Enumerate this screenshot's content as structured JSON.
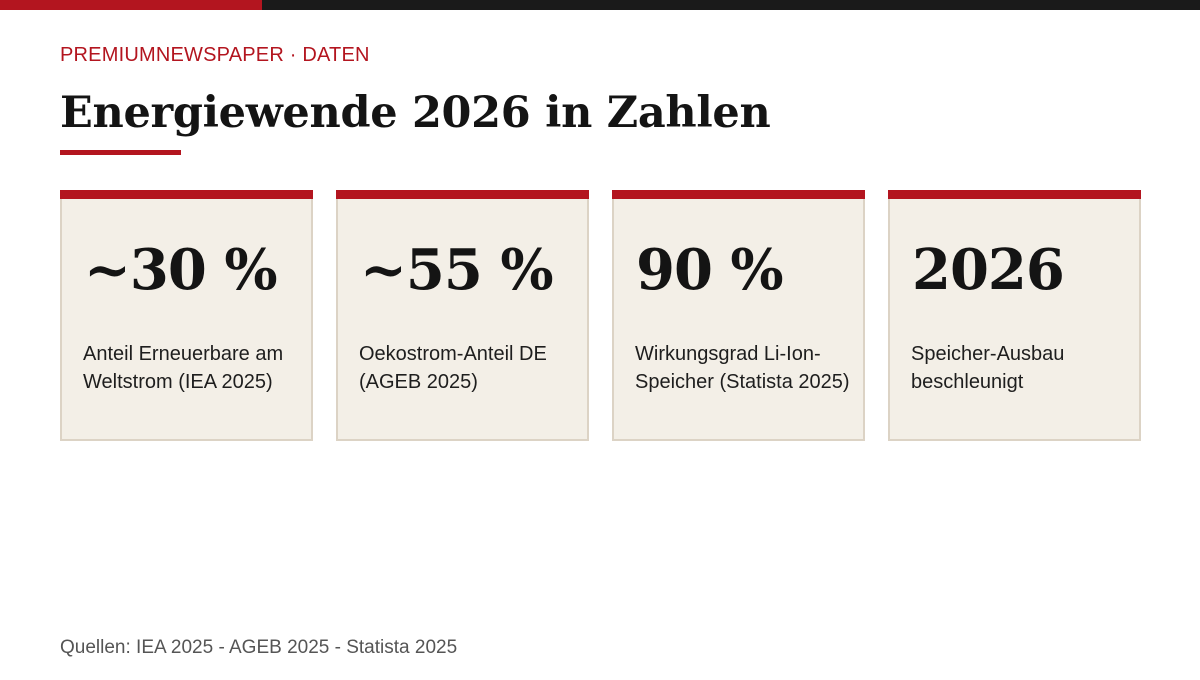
{
  "brand": {
    "kicker": "PREMIUMNEWSPAPER · DATEN"
  },
  "headline": "Energiewende 2026 in Zahlen",
  "colors": {
    "accent": "#b3151f",
    "topbar": "#1a1a1a",
    "card_background": "#f3efe7",
    "card_border": "#dcd3c5",
    "text": "#141414",
    "muted": "#555555"
  },
  "cards": [
    {
      "value": "~30 %",
      "label": "Anteil Erneuerbare am Weltstrom (IEA 2025)"
    },
    {
      "value": "~55 %",
      "label": "Oekostrom-Anteil DE (AGEB 2025)"
    },
    {
      "value": "90 %",
      "label": "Wirkungsgrad Li-Ion-Speicher (Statista 2025)"
    },
    {
      "value": "2026",
      "label": "Speicher-Ausbau beschleunigt"
    }
  ],
  "source": "Quellen: IEA 2025 - AGEB 2025 - Statista 2025"
}
